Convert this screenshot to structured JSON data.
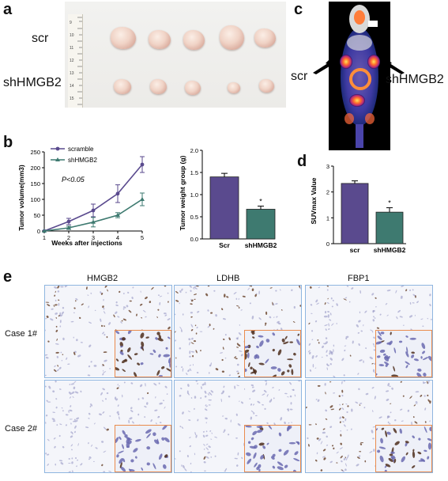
{
  "panels": {
    "a": {
      "letter": "a",
      "label_scr": "scr",
      "label_sh": "shHMGB2",
      "ruler_ticks": [
        "9",
        "10",
        "11",
        "12",
        "13",
        "14",
        "15"
      ]
    },
    "b": {
      "letter": "b"
    },
    "c": {
      "letter": "c",
      "label_scr": "scr",
      "label_sh": "shHMGB2"
    },
    "d": {
      "letter": "d"
    },
    "e": {
      "letter": "e",
      "columns": [
        "HMGB2",
        "LDHB",
        "FBP1"
      ],
      "rows": [
        "Case 1#",
        "Case 2#"
      ]
    }
  },
  "colors": {
    "purple": "#5a4a8e",
    "teal": "#3e7a70",
    "inset_border": "#ea8b4d",
    "ihc_border": "#8fb6e0"
  },
  "chart_data": [
    {
      "type": "line",
      "panel": "b-left",
      "ylabel": "Tumor volume(mm3)",
      "xlabel": "Weeks after injections",
      "x": [
        1,
        2,
        3,
        4,
        5
      ],
      "xlim": [
        1,
        5
      ],
      "ylim": [
        0,
        250
      ],
      "yticks": [
        0,
        50,
        100,
        150,
        200,
        250
      ],
      "annotation": "P<0.05",
      "series": [
        {
          "name": "scramble",
          "values": [
            0,
            30,
            65,
            118,
            210
          ],
          "errors": [
            0,
            10,
            20,
            28,
            25
          ]
        },
        {
          "name": "shHMGB2",
          "values": [
            0,
            10,
            28,
            50,
            100
          ],
          "errors": [
            0,
            5,
            15,
            8,
            20
          ]
        }
      ]
    },
    {
      "type": "bar",
      "panel": "b-right",
      "ylabel": "Tumor weight group (g)",
      "categories": [
        "Scr",
        "shHMGB2"
      ],
      "values": [
        1.4,
        0.67
      ],
      "errors": [
        0.08,
        0.07
      ],
      "ylim": [
        0,
        2.0
      ],
      "yticks": [
        "0.0",
        "0.5",
        "1.0",
        "1.5",
        "2.0"
      ],
      "significance": "*"
    },
    {
      "type": "bar",
      "panel": "d",
      "ylabel": "SUVmax Value",
      "categories": [
        "scr",
        "shHMGB2"
      ],
      "values": [
        2.33,
        1.22
      ],
      "errors": [
        0.1,
        0.17
      ],
      "ylim": [
        0,
        3
      ],
      "yticks": [
        "0",
        "1",
        "2",
        "3"
      ],
      "significance": "*"
    }
  ]
}
